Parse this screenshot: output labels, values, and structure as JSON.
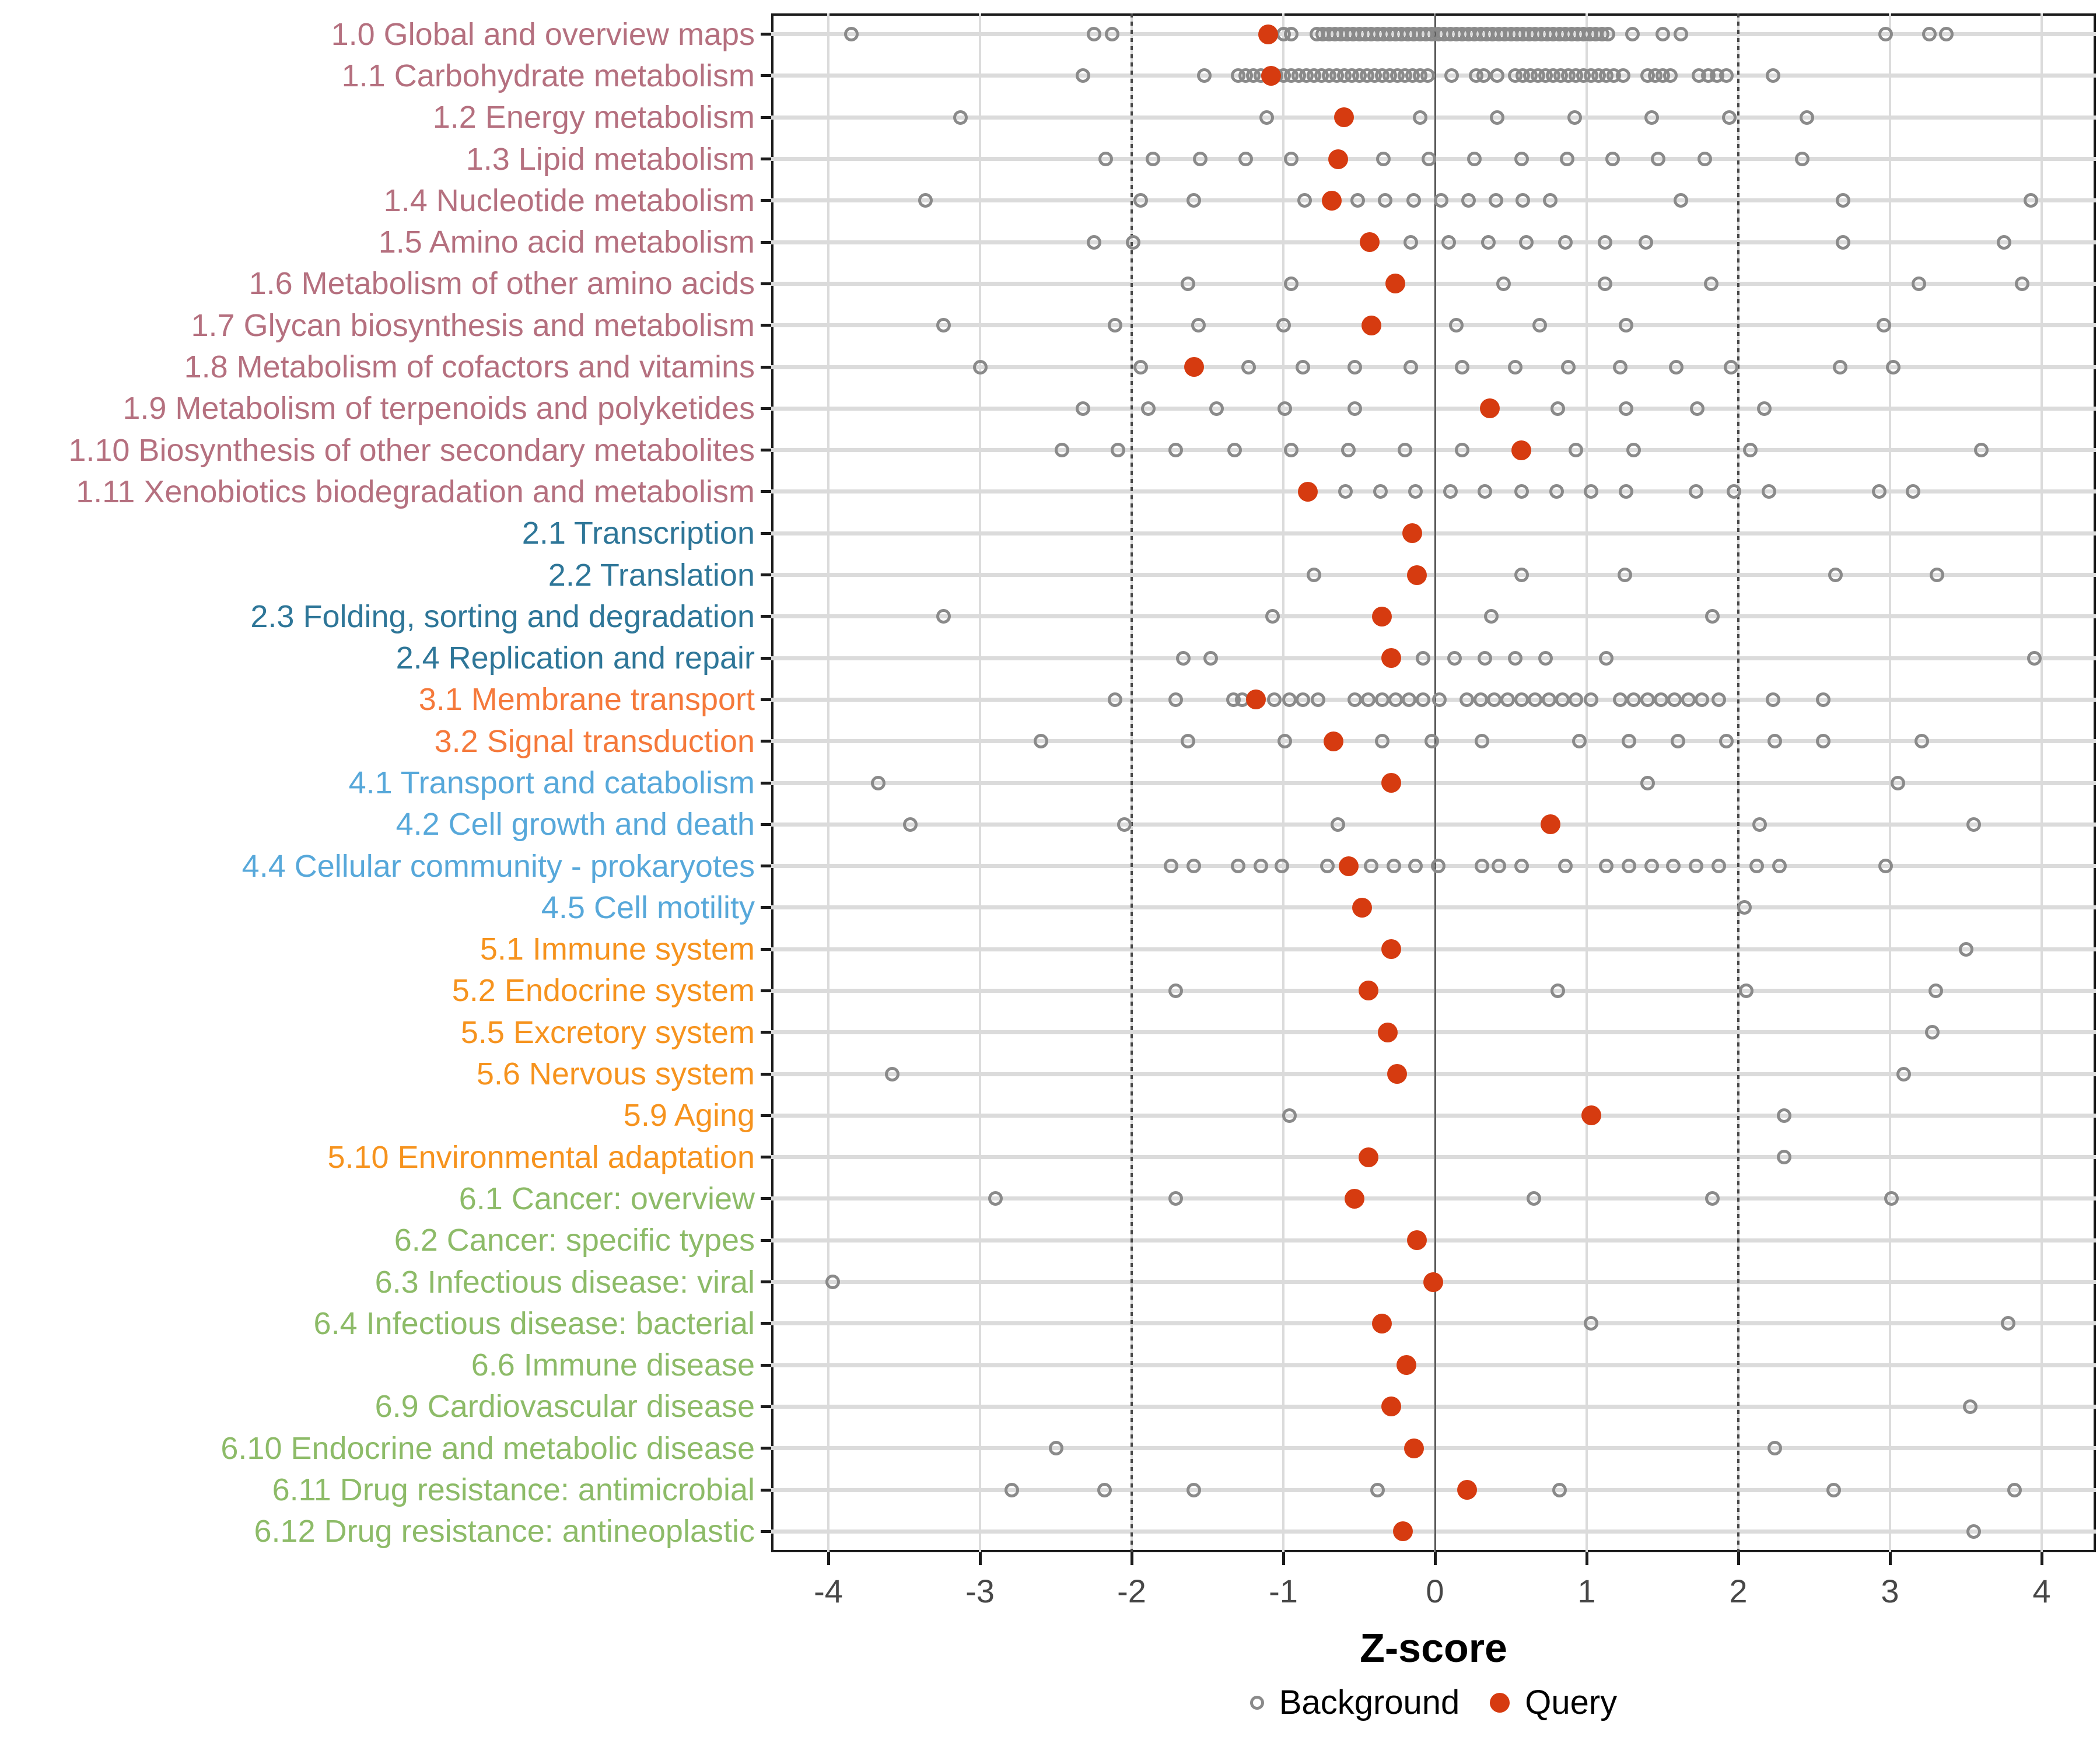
{
  "chart_data": {
    "type": "scatter",
    "title": "",
    "xlabel": "Z-score",
    "xlim": [
      -4.39,
      4.35
    ],
    "xticks": [
      -4,
      -3,
      -2,
      -1,
      0,
      1,
      2,
      3,
      4
    ],
    "grid": "on",
    "reference_lines": {
      "solid_at": 0,
      "dotted_at": [
        -2,
        2
      ]
    },
    "legend_position": "bottom",
    "colors": {
      "query": "#d63b10",
      "background_stroke": "#8a8a8a",
      "gridline": "#dbdbdb",
      "zero_line": "#595959",
      "dotted_line": "#474747",
      "axis_text": "#474747",
      "panel_border": "#1b1b1b",
      "group_1": "#b5707f",
      "group_2": "#2e7698",
      "group_3": "#f5793b",
      "group_4": "#57a8da",
      "group_5": "#f6931e",
      "group_6": "#8dbb68"
    },
    "legend": [
      {
        "label": "Background",
        "marker": "open-circle"
      },
      {
        "label": "Query",
        "marker": "filled-circle"
      }
    ],
    "rows": [
      {
        "label": "1.0 Global and overview maps",
        "group": "1",
        "query": -1.1,
        "background": [
          -3.85,
          -2.25,
          -2.13,
          -1.0,
          -0.95,
          -0.78,
          -0.74,
          -0.7,
          -0.66,
          -0.62,
          -0.58,
          -0.54,
          -0.5,
          -0.46,
          -0.42,
          -0.38,
          -0.34,
          -0.3,
          -0.26,
          -0.22,
          -0.18,
          -0.14,
          -0.1,
          -0.06,
          -0.02,
          0.02,
          0.06,
          0.1,
          0.14,
          0.18,
          0.22,
          0.26,
          0.3,
          0.34,
          0.38,
          0.42,
          0.46,
          0.5,
          0.54,
          0.58,
          0.62,
          0.66,
          0.7,
          0.74,
          0.78,
          0.82,
          0.86,
          0.9,
          0.94,
          0.98,
          1.02,
          1.06,
          1.1,
          1.14,
          1.3,
          1.5,
          1.62,
          2.97,
          3.26,
          3.37
        ]
      },
      {
        "label": "1.1 Carbohydrate metabolism",
        "group": "1",
        "query": -1.08,
        "background": [
          -2.32,
          -1.52,
          -1.3,
          -1.25,
          -1.2,
          -1.15,
          -1.1,
          -1.05,
          -1.0,
          -0.95,
          -0.9,
          -0.85,
          -0.8,
          -0.75,
          -0.7,
          -0.65,
          -0.6,
          -0.55,
          -0.5,
          -0.45,
          -0.4,
          -0.35,
          -0.3,
          -0.25,
          -0.2,
          -0.15,
          -0.1,
          -0.05,
          0.11,
          0.27,
          0.32,
          0.41,
          0.53,
          0.58,
          0.63,
          0.68,
          0.73,
          0.78,
          0.83,
          0.88,
          0.93,
          0.98,
          1.03,
          1.08,
          1.13,
          1.18,
          1.24,
          1.4,
          1.45,
          1.5,
          1.55,
          1.74,
          1.8,
          1.86,
          1.92,
          2.23
        ]
      },
      {
        "label": "1.2 Energy metabolism",
        "group": "1",
        "query": -0.6,
        "background": [
          -3.13,
          -1.11,
          -0.1,
          0.41,
          0.92,
          1.43,
          1.94,
          2.45
        ]
      },
      {
        "label": "1.3 Lipid metabolism",
        "group": "1",
        "query": -0.64,
        "background": [
          -2.17,
          -1.86,
          -1.55,
          -1.25,
          -0.95,
          -0.34,
          -0.04,
          0.26,
          0.57,
          0.87,
          1.17,
          1.47,
          1.78,
          2.42
        ]
      },
      {
        "label": "1.4 Nucleotide metabolism",
        "group": "1",
        "query": -0.68,
        "background": [
          -3.36,
          -1.94,
          -1.59,
          -0.86,
          -0.51,
          -0.33,
          -0.14,
          0.04,
          0.22,
          0.4,
          0.58,
          0.76,
          1.62,
          2.69,
          3.93
        ]
      },
      {
        "label": "1.5 Amino acid metabolism",
        "group": "1",
        "query": -0.43,
        "background": [
          -2.25,
          -1.99,
          -0.16,
          0.09,
          0.35,
          0.6,
          0.86,
          1.12,
          1.39,
          2.69,
          3.75
        ]
      },
      {
        "label": "1.6 Metabolism of other amino acids",
        "group": "1",
        "query": -0.26,
        "background": [
          -1.63,
          -0.95,
          0.45,
          1.12,
          1.82,
          3.19,
          3.87
        ]
      },
      {
        "label": "1.7 Glycan biosynthesis and metabolism",
        "group": "1",
        "query": -0.42,
        "background": [
          -3.24,
          -2.11,
          -1.56,
          -1.0,
          0.14,
          0.69,
          1.26,
          2.96
        ]
      },
      {
        "label": "1.8 Metabolism of cofactors and vitamins",
        "group": "1",
        "query": -1.59,
        "background": [
          -3.0,
          -1.94,
          -1.23,
          -0.87,
          -0.53,
          -0.16,
          0.18,
          0.53,
          0.88,
          1.22,
          1.59,
          1.95,
          2.67,
          3.02
        ]
      },
      {
        "label": "1.9 Metabolism of terpenoids and polyketides",
        "group": "1",
        "query": 0.36,
        "background": [
          -2.32,
          -1.89,
          -1.44,
          -0.99,
          -0.53,
          0.81,
          1.26,
          1.73,
          2.17
        ]
      },
      {
        "label": "1.10 Biosynthesis of other secondary metabolites",
        "group": "1",
        "query": 0.57,
        "background": [
          -2.46,
          -2.09,
          -1.71,
          -1.32,
          -0.95,
          -0.57,
          -0.2,
          0.18,
          0.93,
          1.31,
          2.08,
          3.6
        ]
      },
      {
        "label": "1.11 Xenobiotics biodegradation and metabolism",
        "group": "1",
        "query": -0.84,
        "background": [
          -0.59,
          -0.36,
          -0.13,
          0.1,
          0.33,
          0.57,
          0.8,
          1.03,
          1.26,
          1.72,
          1.97,
          2.2,
          2.93,
          3.15
        ]
      },
      {
        "label": "2.1 Transcription",
        "group": "2",
        "query": -0.15,
        "background": []
      },
      {
        "label": "2.2 Translation",
        "group": "2",
        "query": -0.12,
        "background": [
          -0.8,
          0.57,
          1.25,
          2.64,
          3.31
        ]
      },
      {
        "label": "2.3 Folding, sorting and degradation",
        "group": "2",
        "query": -0.35,
        "background": [
          -3.24,
          -1.07,
          0.37,
          1.83
        ]
      },
      {
        "label": "2.4 Replication and repair",
        "group": "2",
        "query": -0.29,
        "background": [
          -1.66,
          -1.48,
          -0.08,
          0.13,
          0.33,
          0.53,
          0.73,
          1.13,
          3.95
        ]
      },
      {
        "label": "3.1 Membrane transport",
        "group": "3",
        "query": -1.18,
        "background": [
          -2.11,
          -1.71,
          -1.33,
          -1.27,
          -1.06,
          -0.96,
          -0.87,
          -0.77,
          -0.53,
          -0.44,
          -0.35,
          -0.26,
          -0.17,
          -0.08,
          0.03,
          0.21,
          0.3,
          0.39,
          0.48,
          0.57,
          0.66,
          0.75,
          0.84,
          0.93,
          1.03,
          1.22,
          1.31,
          1.4,
          1.49,
          1.58,
          1.67,
          1.76,
          1.87,
          2.23,
          2.56
        ]
      },
      {
        "label": "3.2 Signal transduction",
        "group": "3",
        "query": -0.67,
        "background": [
          -2.6,
          -1.63,
          -0.99,
          -0.35,
          -0.02,
          0.31,
          0.95,
          1.28,
          1.6,
          1.92,
          2.24,
          2.56,
          3.21
        ]
      },
      {
        "label": "4.1 Transport and catabolism",
        "group": "4",
        "query": -0.29,
        "background": [
          -3.67,
          1.4,
          3.05
        ]
      },
      {
        "label": "4.2 Cell growth and death",
        "group": "4",
        "query": 0.76,
        "background": [
          -3.46,
          -2.05,
          -0.64,
          2.14,
          3.55
        ]
      },
      {
        "label": "4.4 Cellular community - prokaryotes",
        "group": "4",
        "query": -0.57,
        "background": [
          -1.74,
          -1.59,
          -1.3,
          -1.15,
          -1.01,
          -0.71,
          -0.42,
          -0.27,
          -0.13,
          0.02,
          0.31,
          0.42,
          0.57,
          0.86,
          1.13,
          1.28,
          1.43,
          1.57,
          1.72,
          1.87,
          2.12,
          2.27,
          2.97
        ]
      },
      {
        "label": "4.5 Cell motility",
        "group": "4",
        "query": -0.48,
        "background": [
          2.04
        ]
      },
      {
        "label": "5.1 Immune system",
        "group": "5",
        "query": -0.29,
        "background": [
          3.5
        ]
      },
      {
        "label": "5.2 Endocrine system",
        "group": "5",
        "query": -0.44,
        "background": [
          -1.71,
          0.81,
          2.05,
          3.3
        ]
      },
      {
        "label": "5.5 Excretory system",
        "group": "5",
        "query": -0.31,
        "background": [
          3.28
        ]
      },
      {
        "label": "5.6 Nervous system",
        "group": "5",
        "query": -0.25,
        "background": [
          -3.58,
          3.09
        ]
      },
      {
        "label": "5.9 Aging",
        "group": "5",
        "query": 1.03,
        "background": [
          -0.96,
          2.3
        ]
      },
      {
        "label": "5.10 Environmental adaptation",
        "group": "5",
        "query": -0.44,
        "background": [
          2.3
        ]
      },
      {
        "label": "6.1 Cancer: overview",
        "group": "6",
        "query": -0.53,
        "background": [
          -2.9,
          -1.71,
          0.65,
          1.83,
          3.01
        ]
      },
      {
        "label": "6.2 Cancer: specific types",
        "group": "6",
        "query": -0.12,
        "background": []
      },
      {
        "label": "6.3 Infectious disease: viral",
        "group": "6",
        "query": -0.01,
        "background": [
          -3.97
        ]
      },
      {
        "label": "6.4 Infectious disease: bacterial",
        "group": "6",
        "query": -0.35,
        "background": [
          1.03,
          3.78
        ]
      },
      {
        "label": "6.6 Immune disease",
        "group": "6",
        "query": -0.19,
        "background": []
      },
      {
        "label": "6.9 Cardiovascular disease",
        "group": "6",
        "query": -0.29,
        "background": [
          3.53
        ]
      },
      {
        "label": "6.10 Endocrine and metabolic disease",
        "group": "6",
        "query": -0.14,
        "background": [
          -2.5,
          2.24
        ]
      },
      {
        "label": "6.11 Drug resistance: antimicrobial",
        "group": "6",
        "query": 0.21,
        "background": [
          -2.79,
          -2.18,
          -1.59,
          -0.38,
          0.82,
          2.63,
          3.82
        ]
      },
      {
        "label": "6.12 Drug resistance: antineoplastic",
        "group": "6",
        "query": -0.21,
        "background": [
          3.55
        ]
      }
    ]
  }
}
